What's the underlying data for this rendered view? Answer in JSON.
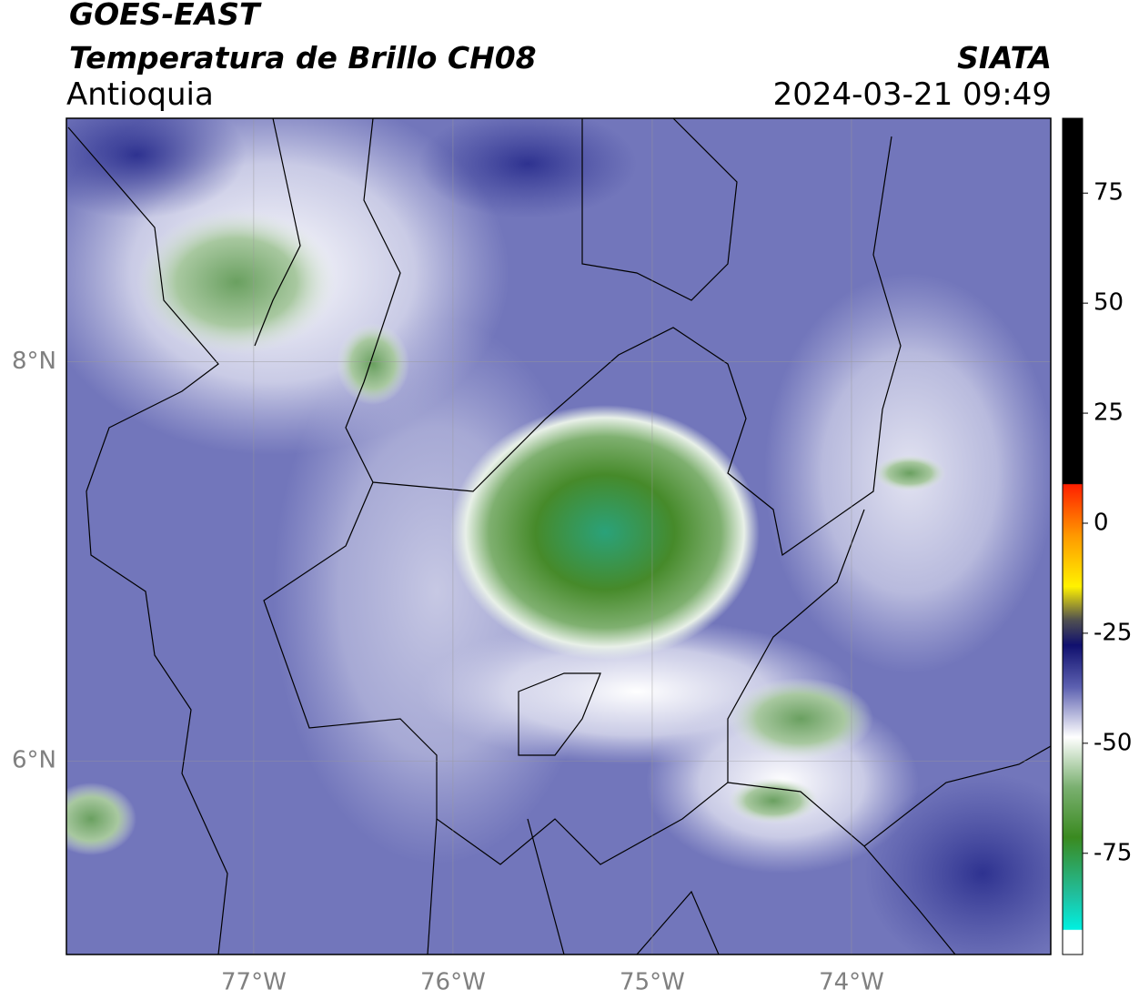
{
  "header": {
    "satellite": "GOES-EAST",
    "product": "Temperatura de Brillo CH08",
    "region": "Antioquia",
    "source": "SIATA",
    "datetime": "2024-03-21 09:49"
  },
  "map": {
    "xlim": [
      -77.94,
      -73.0
    ],
    "ylim": [
      5.03,
      9.22
    ],
    "lon_ticks": [
      {
        "value": -77,
        "label": "77°W"
      },
      {
        "value": -76,
        "label": "76°W"
      },
      {
        "value": -75,
        "label": "75°W"
      },
      {
        "value": -74,
        "label": "74°W"
      }
    ],
    "lat_ticks": [
      {
        "value": 8,
        "label": "8°N"
      },
      {
        "value": 6,
        "label": "6°N"
      }
    ]
  },
  "colorbar": {
    "ylim": [
      -98,
      92
    ],
    "ticks": [
      75,
      50,
      25,
      0,
      -25,
      -50,
      -75
    ]
  }
}
